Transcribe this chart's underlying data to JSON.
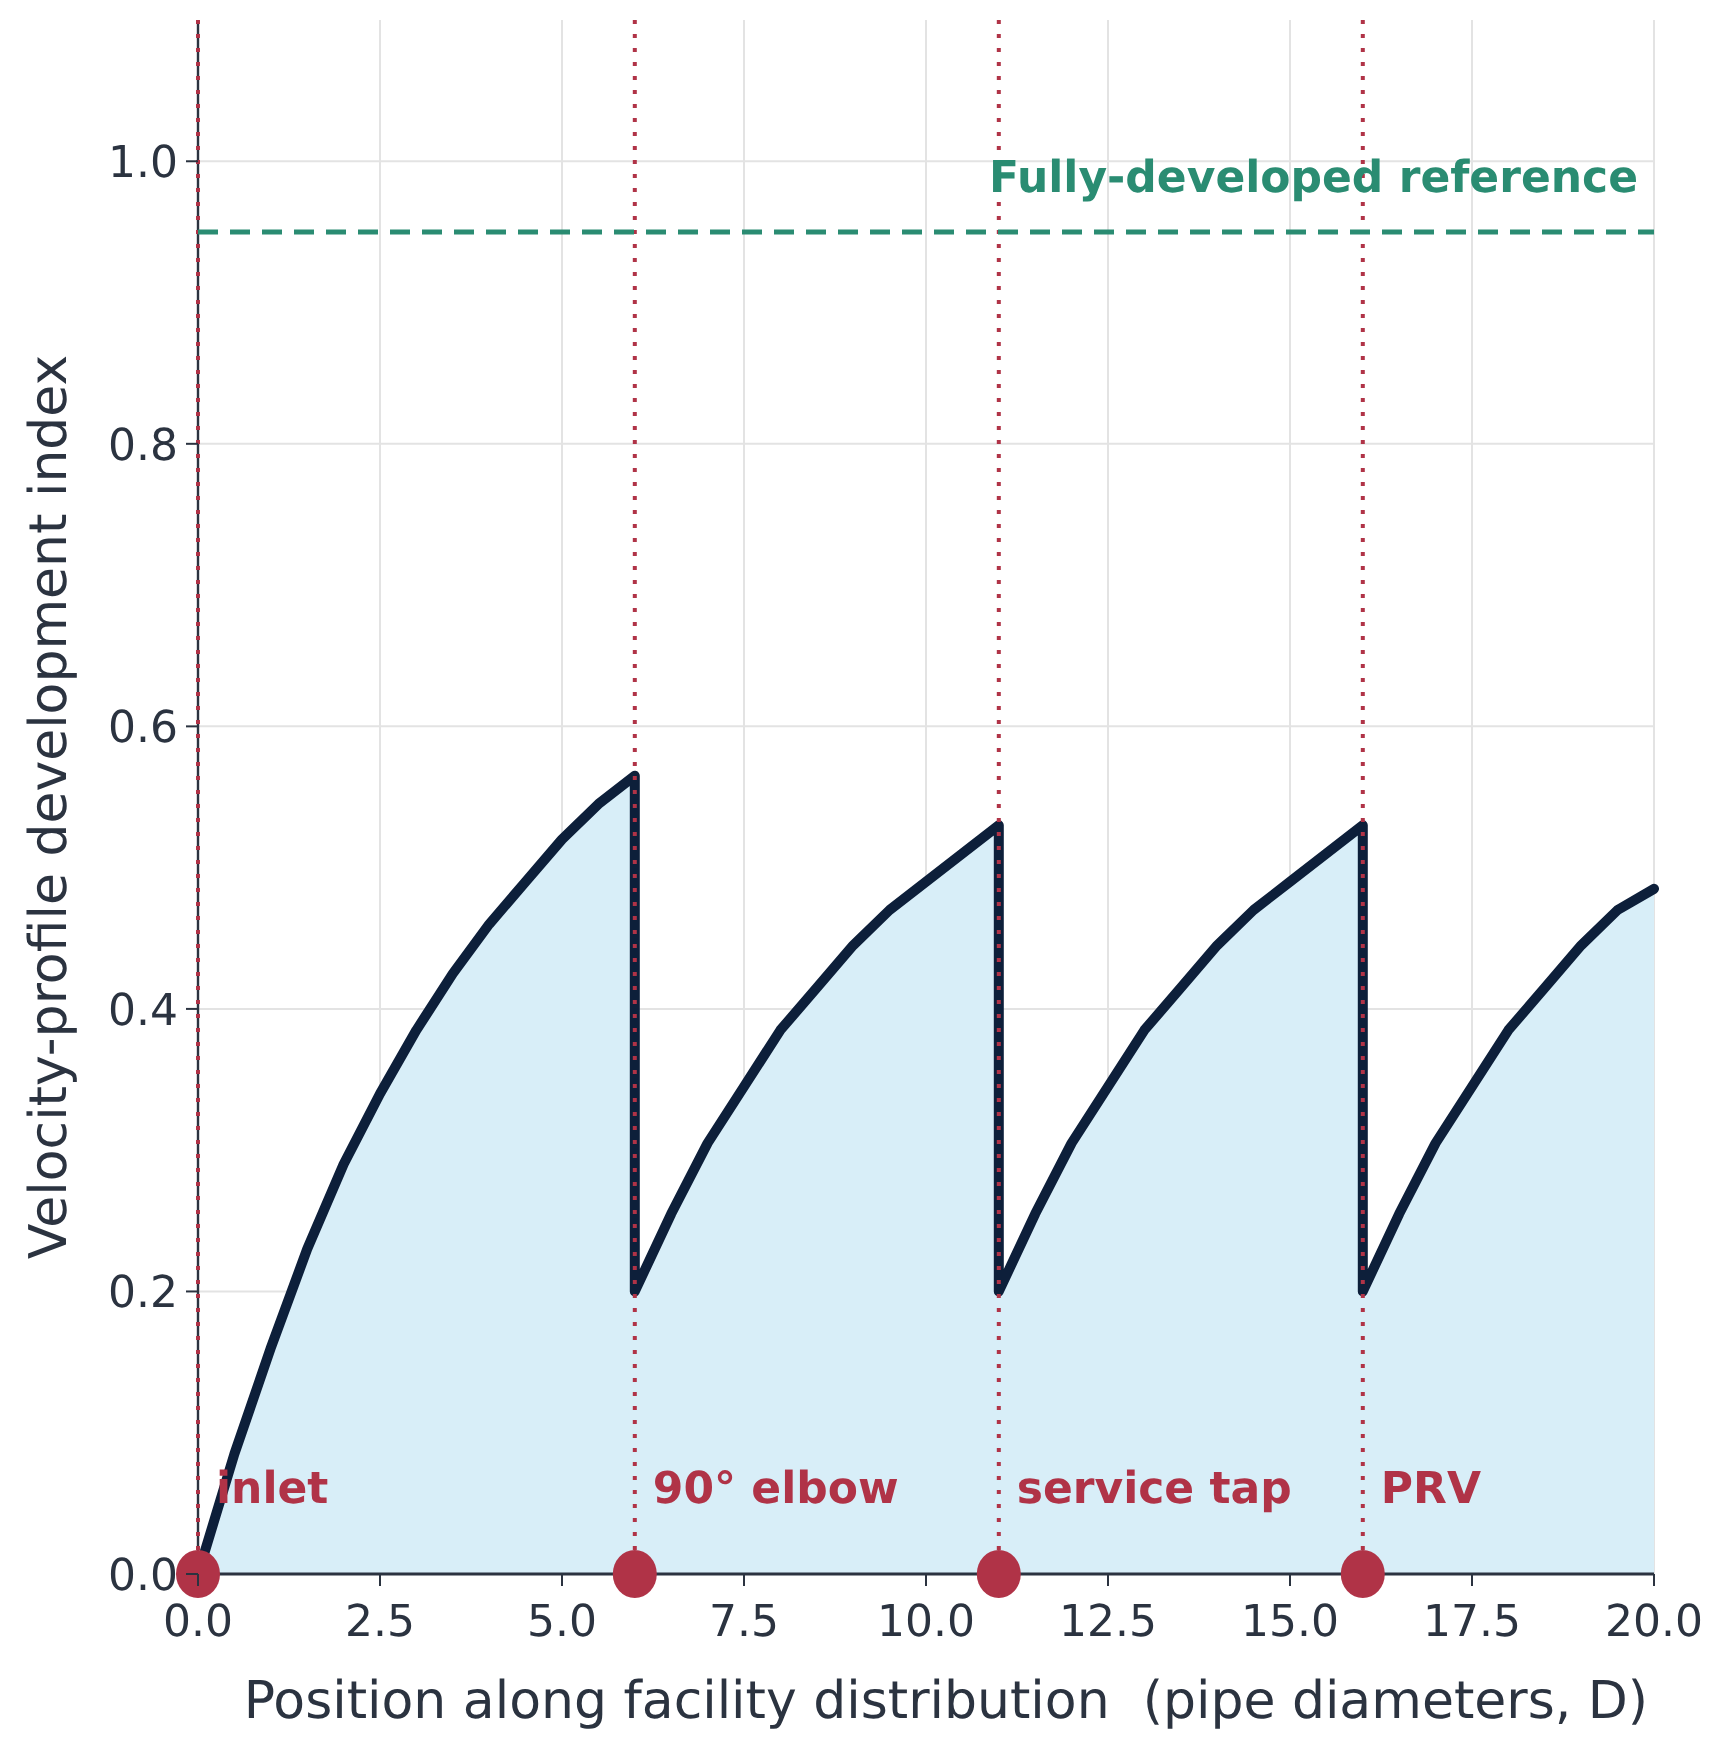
{
  "chart_data": {
    "type": "area",
    "xlabel": "Position along facility distribution  (pipe diameters, D)",
    "ylabel": "Velocity-profile development index",
    "xlim": [
      0,
      20
    ],
    "xticks": [
      {
        "value": 0,
        "label": "0.0"
      },
      {
        "value": 2.5,
        "label": "2.5"
      },
      {
        "value": 5,
        "label": "5.0"
      },
      {
        "value": 7.5,
        "label": "7.5"
      },
      {
        "value": 10,
        "label": "10.0"
      },
      {
        "value": 12.5,
        "label": "12.5"
      },
      {
        "value": 15,
        "label": "15.0"
      },
      {
        "value": 17.5,
        "label": "17.5"
      },
      {
        "value": 20,
        "label": "20.0"
      }
    ],
    "ylim": [
      0,
      1.1
    ],
    "yticks": [
      {
        "value": 0,
        "label": "0.0"
      },
      {
        "value": 0.2,
        "label": "0.2"
      },
      {
        "value": 0.4,
        "label": "0.4"
      },
      {
        "value": 0.6,
        "label": "0.6"
      },
      {
        "value": 0.8,
        "label": "0.8"
      },
      {
        "value": 1,
        "label": "1.0"
      }
    ],
    "grid": true,
    "series": [
      {
        "color": "#0d1f3a",
        "x": [
          0,
          0.5,
          1,
          1.5,
          2,
          2.5,
          3,
          3.5,
          4,
          4.5,
          5,
          5.5,
          6,
          6,
          6.5,
          7,
          7.5,
          8,
          8.5,
          9,
          9.5,
          10,
          10.5,
          11,
          11,
          11.5,
          12,
          12.5,
          13,
          13.5,
          14,
          14.5,
          15,
          15.5,
          16,
          16,
          16.5,
          17,
          17.5,
          18,
          18.5,
          19,
          19.5,
          20
        ],
        "values": [
          0,
          0.085,
          0.16,
          0.23,
          0.29,
          0.34,
          0.385,
          0.425,
          0.46,
          0.49,
          0.52,
          0.545,
          0.565,
          0.2,
          0.255,
          0.305,
          0.345,
          0.385,
          0.415,
          0.445,
          0.47,
          0.49,
          0.51,
          0.53,
          0.2,
          0.255,
          0.305,
          0.345,
          0.385,
          0.415,
          0.445,
          0.47,
          0.49,
          0.51,
          0.53,
          0.2,
          0.255,
          0.305,
          0.345,
          0.385,
          0.415,
          0.445,
          0.47,
          0.485
        ]
      },
      {
        "type": "scatter",
        "color": "#b03347",
        "marker": "circle",
        "x": [
          0,
          6,
          11,
          16
        ],
        "values": [
          0,
          0,
          0,
          0
        ]
      }
    ],
    "ref_lines": [
      {
        "axis": "x",
        "value": 0,
        "label": "inlet",
        "color": "#b03347",
        "line_style": "dotted"
      },
      {
        "axis": "x",
        "value": 6,
        "label": "90° elbow",
        "color": "#b03347",
        "line_style": "dotted"
      },
      {
        "axis": "x",
        "value": 11,
        "label": "service tap",
        "color": "#b03347",
        "line_style": "dotted"
      },
      {
        "axis": "x",
        "value": 16,
        "label": "PRV",
        "color": "#b03347",
        "line_style": "dotted"
      },
      {
        "axis": "y",
        "value": 0.95,
        "label": "Fully-developed reference",
        "color": "#2a8c72",
        "line_style": "dashed"
      }
    ]
  }
}
